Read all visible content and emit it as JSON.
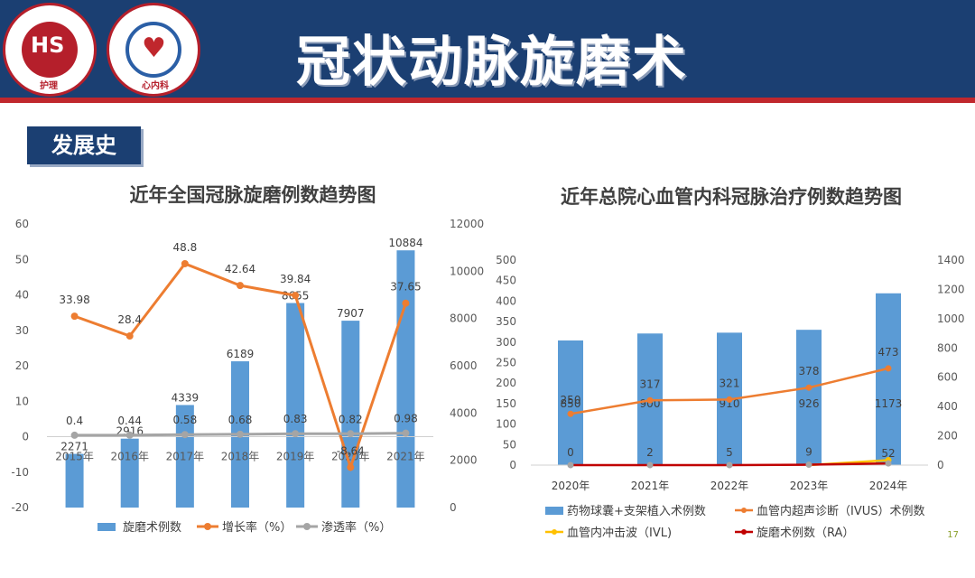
{
  "slide": {
    "title": "冠状动脉旋磨术",
    "section_badge": "发展史",
    "page_number": "17",
    "colors": {
      "header": "#1b3f72",
      "accent": "#c0272d"
    }
  },
  "logos": {
    "left": {
      "mark": "HS",
      "caption": "护理"
    },
    "right": {
      "mark": "♥",
      "caption": "心内科"
    }
  },
  "chart_data": [
    {
      "type": "bar",
      "title": "近年全国冠脉旋磨例数趋势图",
      "categories": [
        "2015年",
        "2016年",
        "2017年",
        "2018年",
        "2019年",
        "2020年",
        "2021年"
      ],
      "series": [
        {
          "name": "旋磨术例数",
          "kind": "bar",
          "axis": "right",
          "color": "#5b9bd5",
          "values": [
            2271,
            2916,
            4339,
            6189,
            8655,
            7907,
            10884
          ]
        },
        {
          "name": "增长率（%）",
          "kind": "line",
          "axis": "left",
          "color": "#ed7d31",
          "values": [
            33.98,
            28.4,
            48.8,
            42.64,
            39.84,
            -8.64,
            37.65
          ],
          "labels": [
            "33.98",
            "28.4",
            "48.8",
            "42.64",
            "39.84",
            "-8.64",
            "37.65"
          ]
        },
        {
          "name": "渗透率（%）",
          "kind": "line",
          "axis": "left",
          "color": "#a5a5a5",
          "values": [
            0.4,
            0.44,
            0.58,
            0.68,
            0.83,
            0.82,
            0.98
          ],
          "labels": [
            "0.4",
            "0.44",
            "0.58",
            "0.68",
            "0.83",
            "0.82",
            "0.98"
          ]
        }
      ],
      "ylim_left": [
        -20,
        60
      ],
      "yticks_left": [
        "60",
        "50",
        "40",
        "30",
        "20",
        "10",
        "0",
        "-10",
        "-20"
      ],
      "ylim_right": [
        0,
        12000
      ],
      "yticks_right": [
        "12000",
        "10000",
        "8000",
        "6000",
        "4000",
        "2000",
        "0"
      ],
      "legend": "bottom",
      "grid": false
    },
    {
      "type": "bar",
      "title": "近年总院心血管内科冠脉治疗例数趋势图",
      "categories": [
        "2020年",
        "2021年",
        "2022年",
        "2023年",
        "2024年"
      ],
      "series": [
        {
          "name": "药物球囊+支架植入术例数",
          "kind": "bar",
          "axis": "left",
          "color": "#5b9bd5",
          "values": [
            850,
            900,
            910,
            926,
            1173
          ]
        },
        {
          "name": "血管内超声诊断（IVUS）术例数",
          "kind": "line",
          "axis": "left",
          "color": "#ed7d31",
          "values": [
            250,
            317,
            321,
            378,
            473
          ]
        },
        {
          "name": "血管内冲击波（IVL)",
          "kind": "line",
          "axis": "left",
          "color": "#ffc000",
          "values": [
            null,
            null,
            null,
            0,
            52
          ]
        },
        {
          "name": "旋磨术例数（RA）",
          "kind": "line",
          "axis": "left",
          "color": "#c00000",
          "values": [
            0,
            2,
            5,
            9,
            52
          ]
        }
      ],
      "ylim_left": [
        0,
        500
      ],
      "yticks_left": [
        "500",
        "450",
        "400",
        "350",
        "300",
        "250",
        "200",
        "150",
        "100",
        "50",
        "0"
      ],
      "ylim_right": [
        0,
        1400
      ],
      "yticks_right": [
        "1400",
        "1200",
        "1000",
        "800",
        "600",
        "400",
        "200",
        "0"
      ],
      "legend": "bottom",
      "grid": false
    }
  ]
}
